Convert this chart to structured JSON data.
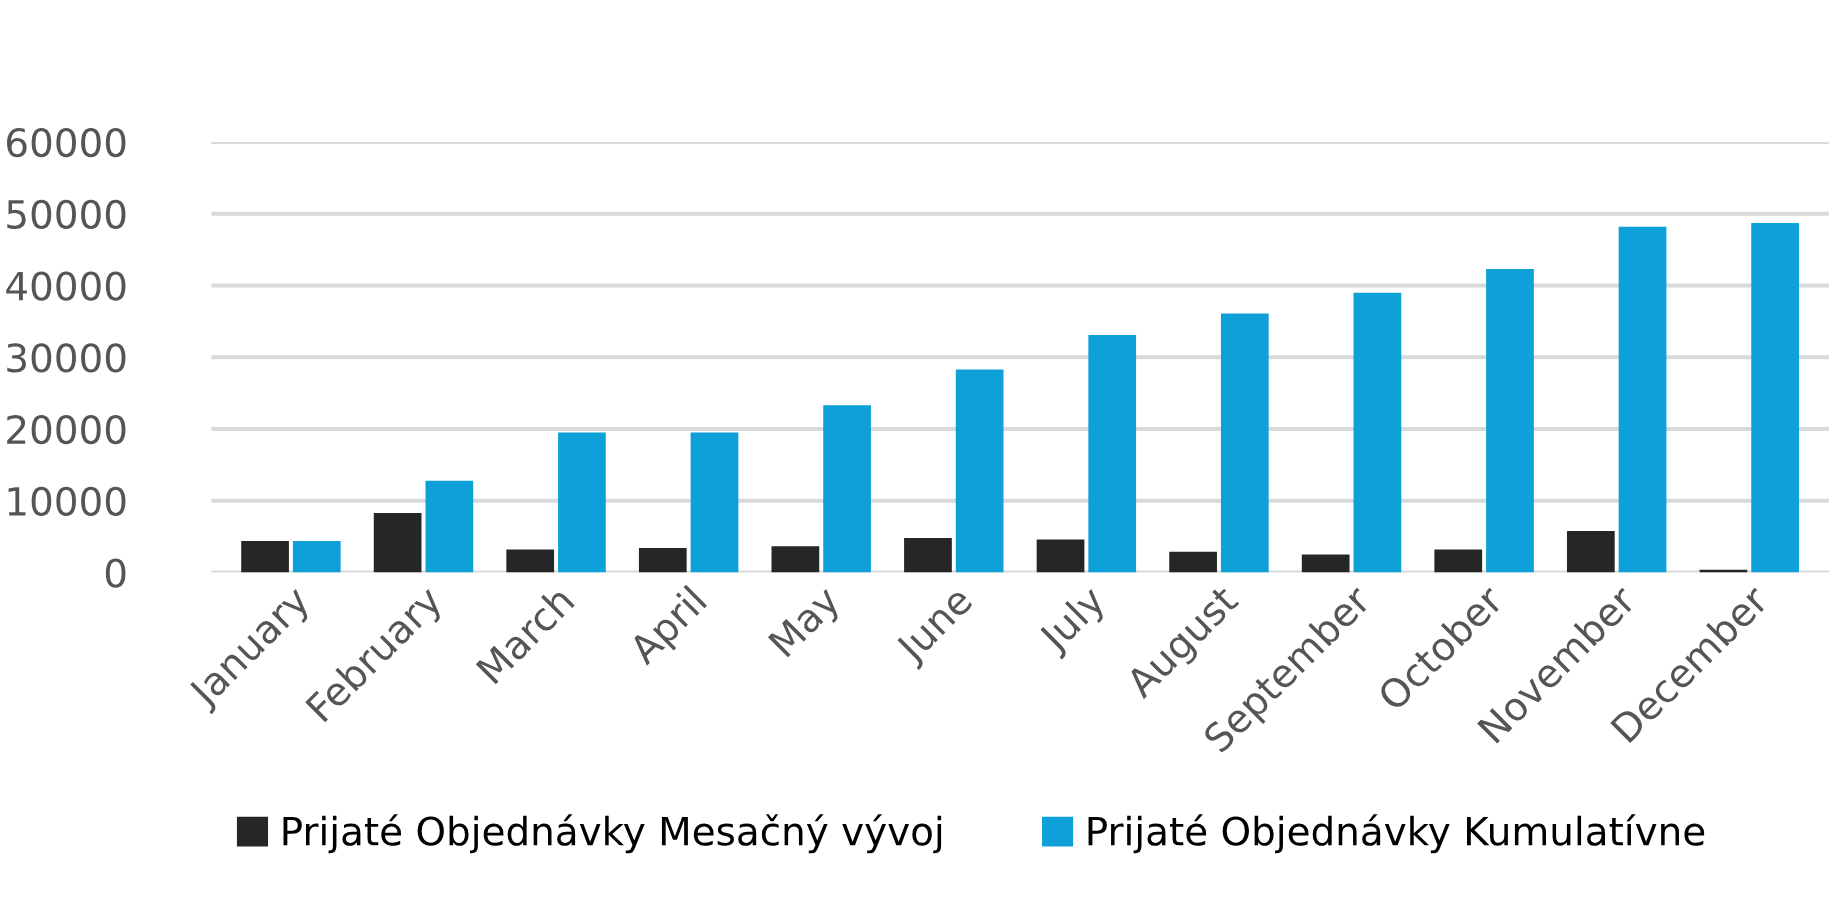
{
  "chart_data": {
    "type": "bar",
    "categories": [
      "January",
      "February",
      "March",
      "April",
      "May",
      "June",
      "July",
      "August",
      "September",
      "October",
      "November",
      "December"
    ],
    "series": [
      {
        "name": "Prijaté Objednávky Mesačný vývoj",
        "color": "#262626",
        "values": [
          4400,
          8300,
          3200,
          3400,
          3650,
          4800,
          4600,
          2900,
          2500,
          3200,
          5800,
          400
        ]
      },
      {
        "name": "Prijaté Objednávky Kumulatívne",
        "color": "#0ea0d8",
        "values": [
          4400,
          12800,
          19500,
          19500,
          23300,
          28300,
          33100,
          36100,
          39000,
          42300,
          48200,
          48700
        ]
      }
    ],
    "ylim": [
      0,
      60000
    ],
    "yticks": [
      0,
      10000,
      20000,
      30000,
      40000,
      50000,
      60000
    ],
    "grid": "y",
    "legend": "bottom"
  }
}
